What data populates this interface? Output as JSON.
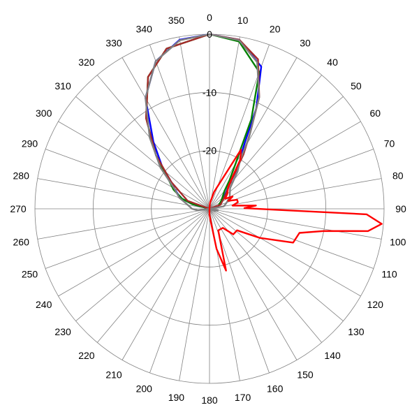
{
  "chart_data": {
    "type": "polar",
    "angular_ticks": [
      "0",
      "10",
      "20",
      "30",
      "40",
      "50",
      "60",
      "70",
      "80",
      "90",
      "100",
      "110",
      "120",
      "130",
      "140",
      "150",
      "160",
      "170",
      "180",
      "190",
      "200",
      "210",
      "220",
      "230",
      "240",
      "250",
      "260",
      "270",
      "280",
      "290",
      "300",
      "310",
      "320",
      "330",
      "340",
      "350"
    ],
    "radial_ticks": [
      "0",
      "-10",
      "-20"
    ],
    "r_range": [
      -30,
      0
    ],
    "angle_direction": "clockwise",
    "zero_angle": "top",
    "grid": true,
    "series": [
      {
        "color": "#0000ff",
        "points": [
          [
            0,
            0
          ],
          [
            10,
            -0.5
          ],
          [
            20,
            -4
          ],
          [
            25,
            -11
          ],
          [
            28,
            -17
          ],
          [
            30,
            -19
          ],
          [
            32,
            -20
          ],
          [
            35,
            -22
          ],
          [
            38,
            -24
          ],
          [
            45,
            -26
          ],
          [
            60,
            -27.5
          ],
          [
            75,
            -28.5
          ],
          [
            90,
            -30
          ],
          [
            180,
            -30
          ],
          [
            270,
            -30
          ],
          [
            285,
            -27
          ],
          [
            290,
            -25
          ],
          [
            295,
            -24
          ],
          [
            300,
            -23
          ],
          [
            305,
            -22
          ],
          [
            312,
            -19
          ],
          [
            320,
            -15
          ],
          [
            330,
            -8
          ],
          [
            340,
            -3
          ],
          [
            350,
            -0.5
          ],
          [
            360,
            0
          ]
        ]
      },
      {
        "color": "#008000",
        "points": [
          [
            0,
            0
          ],
          [
            10,
            -0.8
          ],
          [
            20,
            -5
          ],
          [
            25,
            -13
          ],
          [
            28,
            -19
          ],
          [
            30,
            -21
          ],
          [
            35,
            -24
          ],
          [
            40,
            -26
          ],
          [
            55,
            -27.5
          ],
          [
            75,
            -28.5
          ],
          [
            90,
            -30
          ],
          [
            180,
            -30
          ],
          [
            270,
            -30
          ],
          [
            285,
            -27
          ],
          [
            290,
            -25
          ],
          [
            298,
            -23
          ],
          [
            305,
            -21.5
          ],
          [
            315,
            -17
          ],
          [
            325,
            -11
          ],
          [
            335,
            -5
          ],
          [
            345,
            -1.5
          ],
          [
            360,
            0
          ]
        ]
      },
      {
        "color": "#a52a2a",
        "points": [
          [
            0,
            0
          ],
          [
            10,
            -0.5
          ],
          [
            18,
            -3
          ],
          [
            24,
            -9
          ],
          [
            28,
            -15
          ],
          [
            32,
            -19
          ],
          [
            38,
            -24
          ],
          [
            50,
            -26.5
          ],
          [
            70,
            -28
          ],
          [
            90,
            -30
          ],
          [
            180,
            -30
          ],
          [
            270,
            -30
          ],
          [
            290,
            -26
          ],
          [
            305,
            -22
          ],
          [
            315,
            -17
          ],
          [
            325,
            -11
          ],
          [
            335,
            -5
          ],
          [
            345,
            -1.5
          ],
          [
            360,
            0
          ]
        ]
      },
      {
        "color": "#808080",
        "points": [
          [
            0,
            0
          ],
          [
            10,
            -0.6
          ],
          [
            18,
            -3.5
          ],
          [
            24,
            -9
          ],
          [
            29,
            -16
          ],
          [
            32,
            -20
          ],
          [
            37,
            -22
          ],
          [
            45,
            -25
          ],
          [
            60,
            -26
          ],
          [
            72,
            -27
          ],
          [
            80,
            -27.5
          ],
          [
            90,
            -30
          ],
          [
            100,
            -28.5
          ],
          [
            110,
            -29
          ],
          [
            180,
            -30
          ],
          [
            240,
            -30
          ],
          [
            262,
            -28
          ],
          [
            270,
            -27
          ],
          [
            282,
            -26
          ],
          [
            290,
            -24.5
          ],
          [
            300,
            -23
          ],
          [
            310,
            -19
          ],
          [
            320,
            -14
          ],
          [
            330,
            -8
          ],
          [
            340,
            -3
          ],
          [
            350,
            -0.6
          ],
          [
            360,
            0
          ]
        ]
      },
      {
        "color": "#ff0000",
        "points": [
          [
            0,
            -30
          ],
          [
            5,
            -29
          ],
          [
            15,
            -27
          ],
          [
            28,
            -18.5
          ],
          [
            32,
            -20
          ],
          [
            40,
            -25
          ],
          [
            50,
            -26
          ],
          [
            57,
            -26.8
          ],
          [
            62,
            -25.5
          ],
          [
            67,
            -26.5
          ],
          [
            72,
            -25
          ],
          [
            77,
            -25
          ],
          [
            82,
            -26
          ],
          [
            86,
            -22
          ],
          [
            89,
            -24
          ],
          [
            92,
            -3
          ],
          [
            95,
            -0.3
          ],
          [
            98,
            -2.5
          ],
          [
            101,
            -10
          ],
          [
            105,
            -14
          ],
          [
            112,
            -14.5
          ],
          [
            120,
            -20
          ],
          [
            128,
            -24
          ],
          [
            137,
            -24
          ],
          [
            145,
            -26
          ],
          [
            158,
            -26
          ],
          [
            165,
            -19
          ],
          [
            170,
            -23
          ],
          [
            175,
            -28
          ],
          [
            180,
            -29
          ],
          [
            200,
            -30
          ],
          [
            360,
            -30
          ]
        ]
      }
    ]
  }
}
